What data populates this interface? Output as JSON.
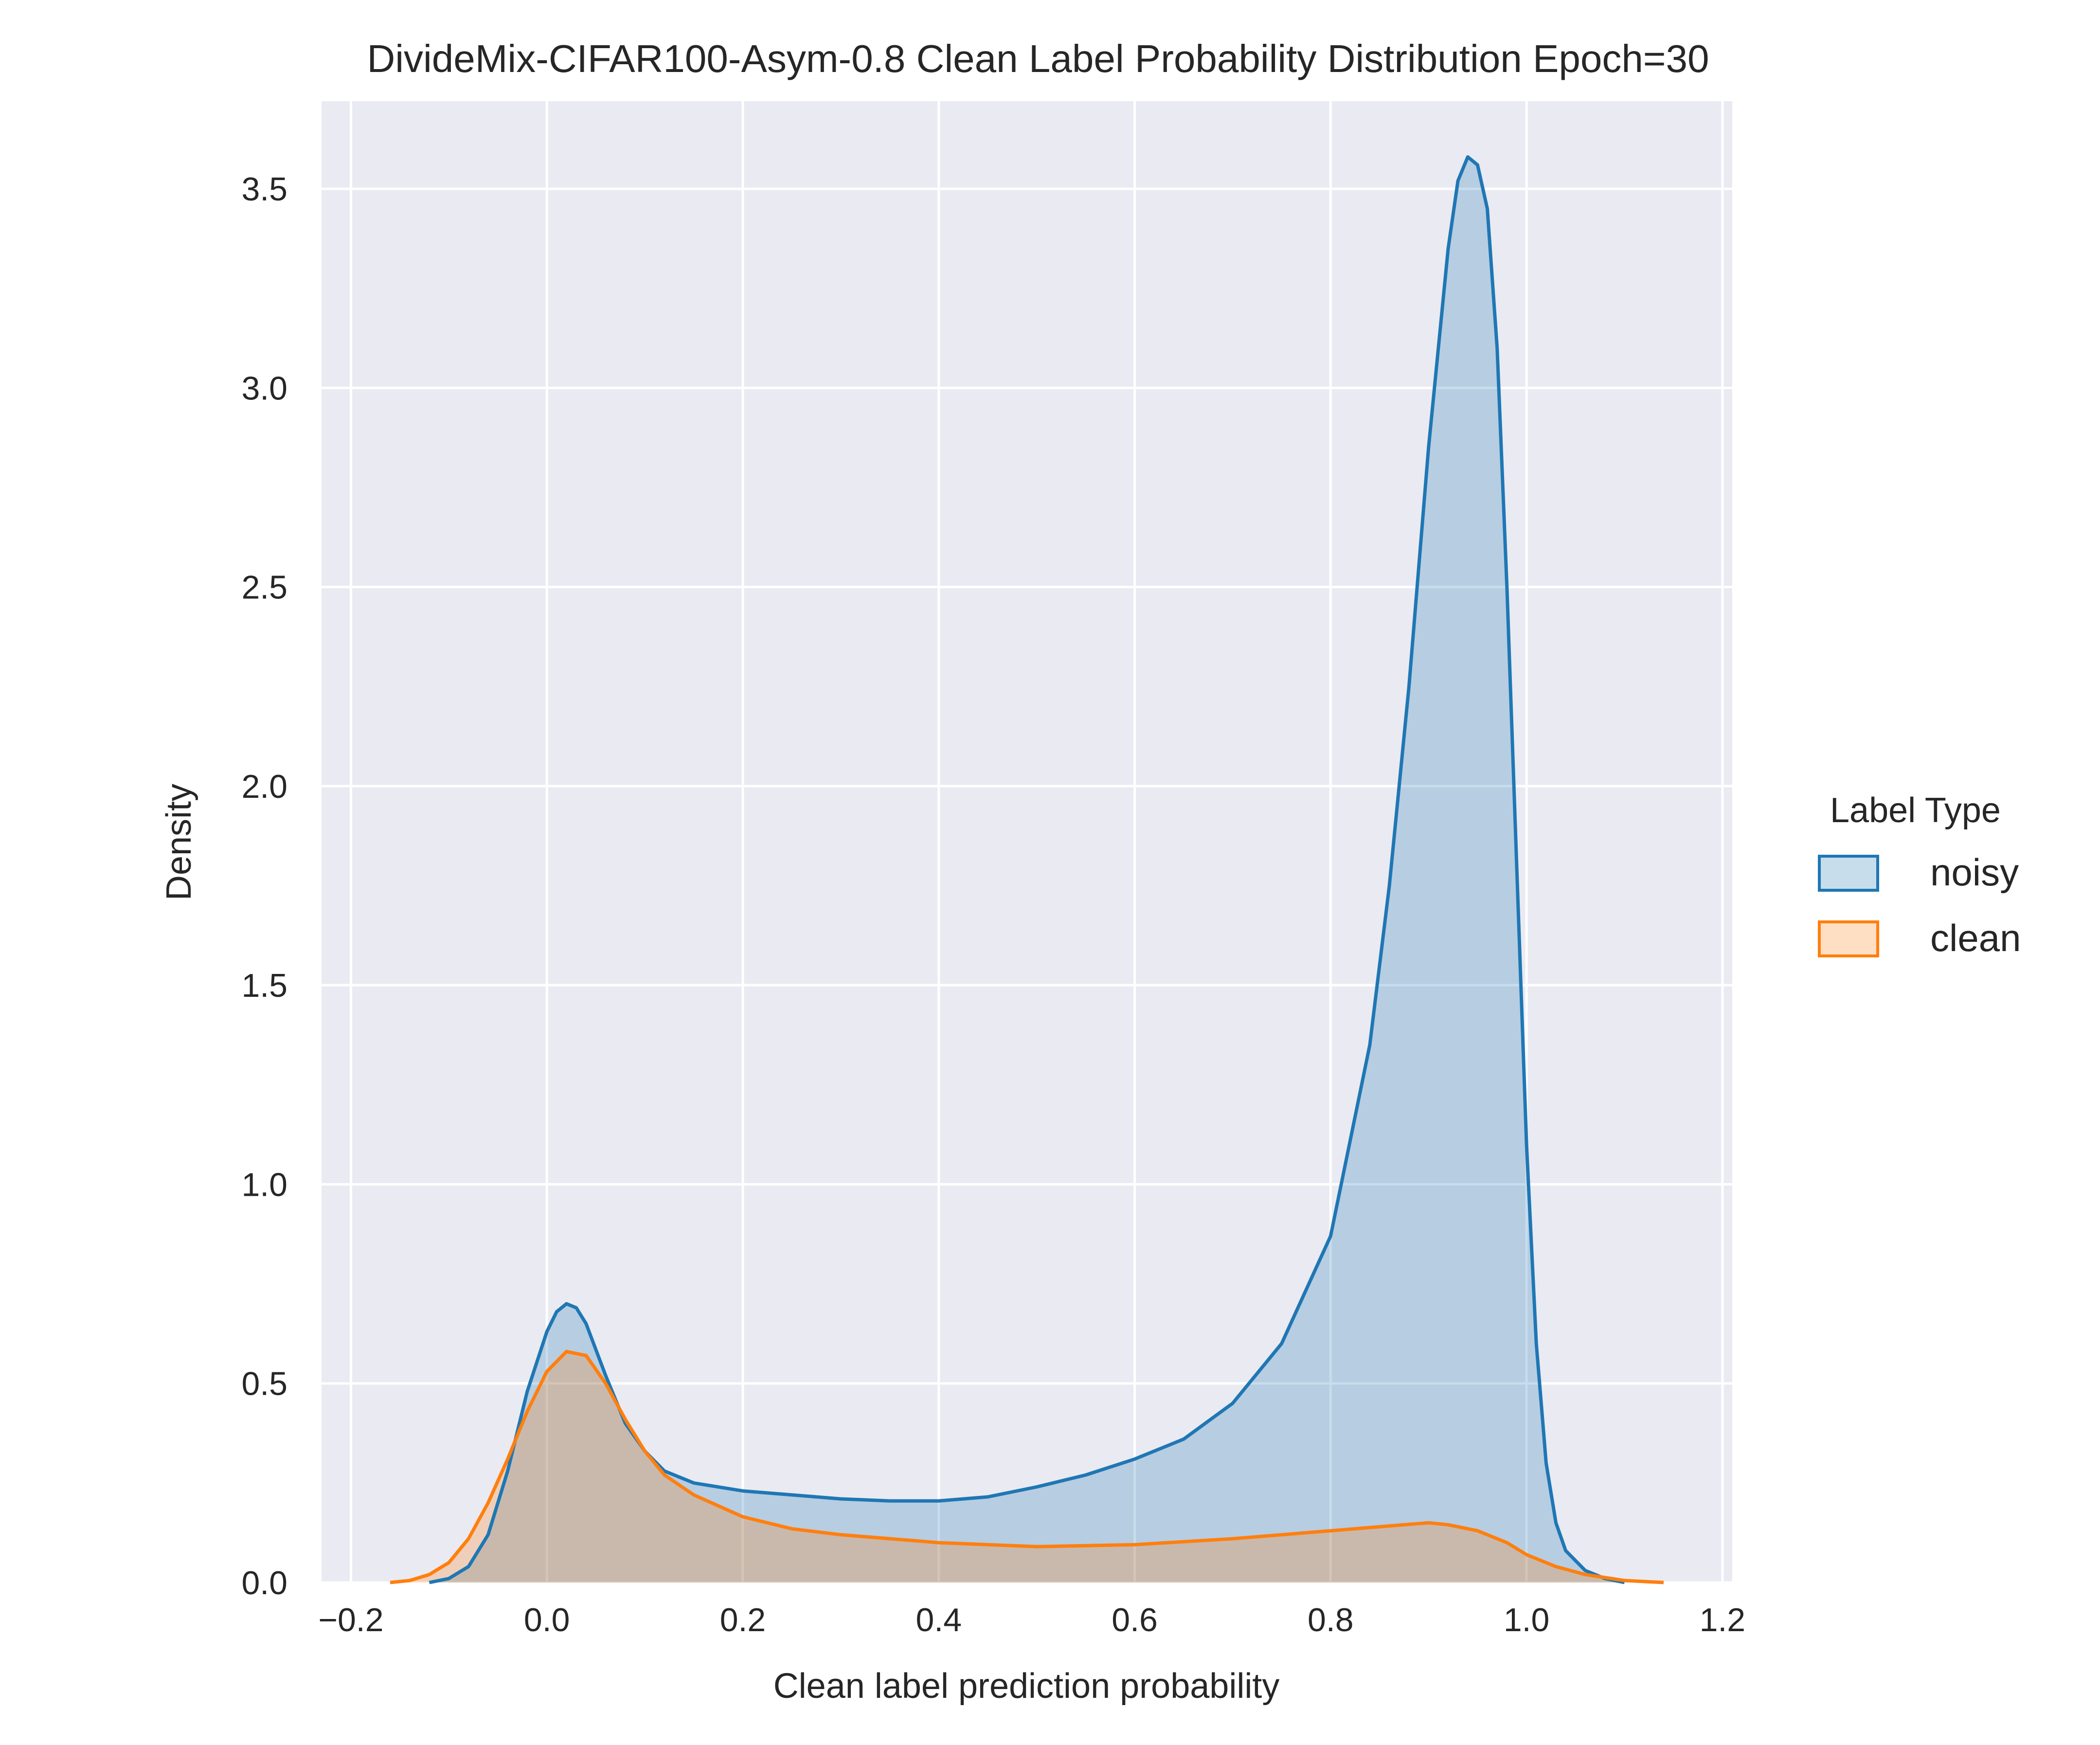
{
  "chart_data": {
    "type": "area",
    "title": "DivideMix-CIFAR100-Asym-0.8 Clean Label Probability Distribution Epoch=30",
    "xlabel": "Clean label prediction probability",
    "ylabel": "Density",
    "xlim": [
      -0.23,
      1.21
    ],
    "ylim": [
      0,
      3.72
    ],
    "xticks": [
      -0.2,
      0.0,
      0.2,
      0.4,
      0.6,
      0.8,
      1.0,
      1.2
    ],
    "xtick_labels": [
      "−0.2",
      "0.0",
      "0.2",
      "0.4",
      "0.6",
      "0.8",
      "1.0",
      "1.2"
    ],
    "yticks": [
      0.0,
      0.5,
      1.0,
      1.5,
      2.0,
      2.5,
      3.0,
      3.5
    ],
    "ytick_labels": [
      "0.0",
      "0.5",
      "1.0",
      "1.5",
      "2.0",
      "2.5",
      "3.0",
      "3.5"
    ],
    "grid": true,
    "background": "#eaeaf2",
    "legend": {
      "title": "Label Type",
      "placement": "right",
      "entries": [
        "noisy",
        "clean"
      ]
    },
    "series": [
      {
        "name": "noisy",
        "color": "#1f77b4",
        "fill": "#1f77b4",
        "x": [
          -0.12,
          -0.1,
          -0.08,
          -0.06,
          -0.04,
          -0.02,
          0.0,
          0.01,
          0.02,
          0.03,
          0.04,
          0.06,
          0.08,
          0.1,
          0.12,
          0.15,
          0.2,
          0.25,
          0.3,
          0.35,
          0.4,
          0.45,
          0.5,
          0.55,
          0.6,
          0.65,
          0.7,
          0.75,
          0.8,
          0.84,
          0.86,
          0.88,
          0.9,
          0.92,
          0.93,
          0.94,
          0.95,
          0.96,
          0.97,
          0.98,
          0.99,
          1.0,
          1.01,
          1.02,
          1.03,
          1.04,
          1.06,
          1.08,
          1.1
        ],
        "values": [
          0.0,
          0.01,
          0.04,
          0.12,
          0.28,
          0.48,
          0.63,
          0.68,
          0.7,
          0.69,
          0.65,
          0.52,
          0.4,
          0.33,
          0.28,
          0.25,
          0.23,
          0.22,
          0.21,
          0.205,
          0.205,
          0.215,
          0.24,
          0.27,
          0.31,
          0.36,
          0.45,
          0.6,
          0.87,
          1.35,
          1.75,
          2.25,
          2.85,
          3.35,
          3.52,
          3.58,
          3.56,
          3.45,
          3.1,
          2.5,
          1.8,
          1.1,
          0.6,
          0.3,
          0.15,
          0.08,
          0.03,
          0.01,
          0.0
        ]
      },
      {
        "name": "clean",
        "color": "#ff7f0e",
        "fill": "#ff7f0e",
        "x": [
          -0.16,
          -0.14,
          -0.12,
          -0.1,
          -0.08,
          -0.06,
          -0.04,
          -0.02,
          0.0,
          0.02,
          0.04,
          0.06,
          0.08,
          0.1,
          0.12,
          0.15,
          0.2,
          0.25,
          0.3,
          0.4,
          0.5,
          0.6,
          0.7,
          0.8,
          0.85,
          0.9,
          0.92,
          0.95,
          0.98,
          1.0,
          1.03,
          1.06,
          1.1,
          1.14
        ],
        "values": [
          0.0,
          0.005,
          0.02,
          0.05,
          0.11,
          0.2,
          0.31,
          0.43,
          0.53,
          0.58,
          0.57,
          0.5,
          0.41,
          0.33,
          0.27,
          0.22,
          0.165,
          0.135,
          0.12,
          0.1,
          0.09,
          0.095,
          0.11,
          0.13,
          0.14,
          0.15,
          0.145,
          0.13,
          0.1,
          0.07,
          0.04,
          0.02,
          0.005,
          0.0
        ]
      }
    ]
  }
}
